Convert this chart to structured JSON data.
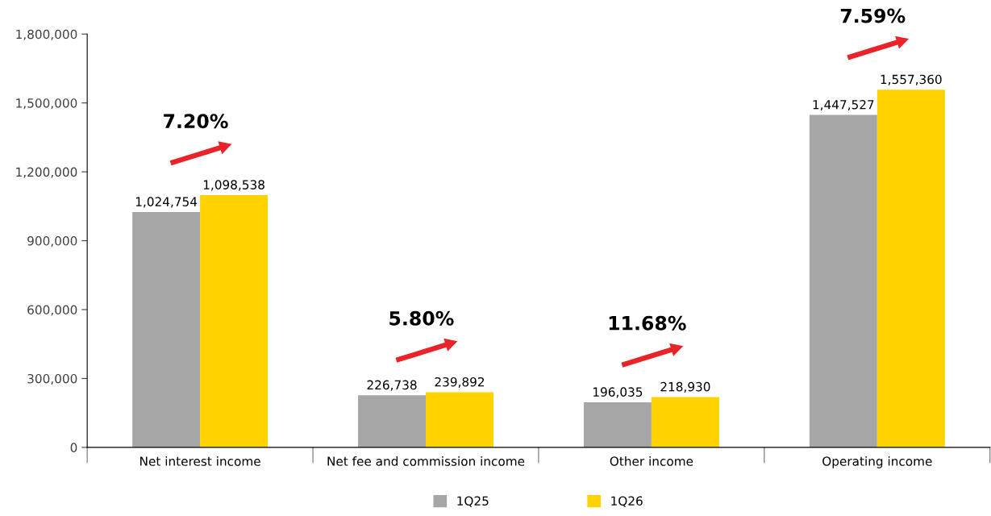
{
  "chart_data": {
    "type": "bar",
    "categories": [
      "Net interest income",
      "Net fee and commission income",
      "Other income",
      "Operating income"
    ],
    "series": [
      {
        "name": "1Q25",
        "color": "#a6a6a6",
        "values": [
          1024754,
          226738,
          196035,
          1447527
        ]
      },
      {
        "name": "1Q26",
        "color": "#ffd200",
        "values": [
          1098538,
          239892,
          218930,
          1557360
        ]
      }
    ],
    "ylim": [
      0,
      1800000
    ],
    "yticks": [
      {
        "value": 0,
        "label": "0"
      },
      {
        "value": 300000,
        "label": "300,000"
      },
      {
        "value": 600000,
        "label": "600,000"
      },
      {
        "value": 900000,
        "label": "900,000"
      },
      {
        "value": 1200000,
        "label": "1,200,000"
      },
      {
        "value": 1500000,
        "label": "1,500,000"
      },
      {
        "value": 1800000,
        "label": "1,800,000"
      }
    ],
    "value_labels": [
      [
        "1,024,754",
        "226,738",
        "196,035",
        "1,447,527"
      ],
      [
        "1,098,538",
        "239,892",
        "218,930",
        "1,557,360"
      ]
    ],
    "annotations": [
      "7.20%",
      "5.80%",
      "11.68%",
      "7.59%"
    ],
    "grid": false,
    "legend": "bottom"
  }
}
